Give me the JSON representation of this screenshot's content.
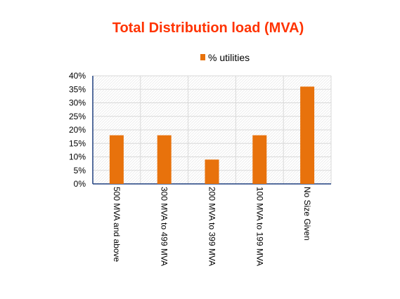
{
  "chart_data": {
    "type": "bar",
    "title": "Total Distribution load (MVA)",
    "categories": [
      "500 MVA and above",
      "300 MVA to 499 MVA",
      "200 MVA to 399 MVA",
      "100 MVA to 199 MVA",
      "No Size Given"
    ],
    "series": [
      {
        "name": "% utilities",
        "values": [
          18,
          18,
          9,
          18,
          36
        ]
      }
    ],
    "ylim": [
      0,
      40
    ],
    "y_ticks": [
      "0%",
      "5%",
      "10%",
      "15%",
      "20%",
      "25%",
      "30%",
      "35%",
      "40%"
    ],
    "legend_position": "top",
    "grid": true,
    "x_tick_rotation": "vertical"
  },
  "colors": {
    "title": "#ff3300",
    "bar": "#e8720c",
    "grid": "#d9d9d9",
    "axis": "#1f3f7f"
  }
}
